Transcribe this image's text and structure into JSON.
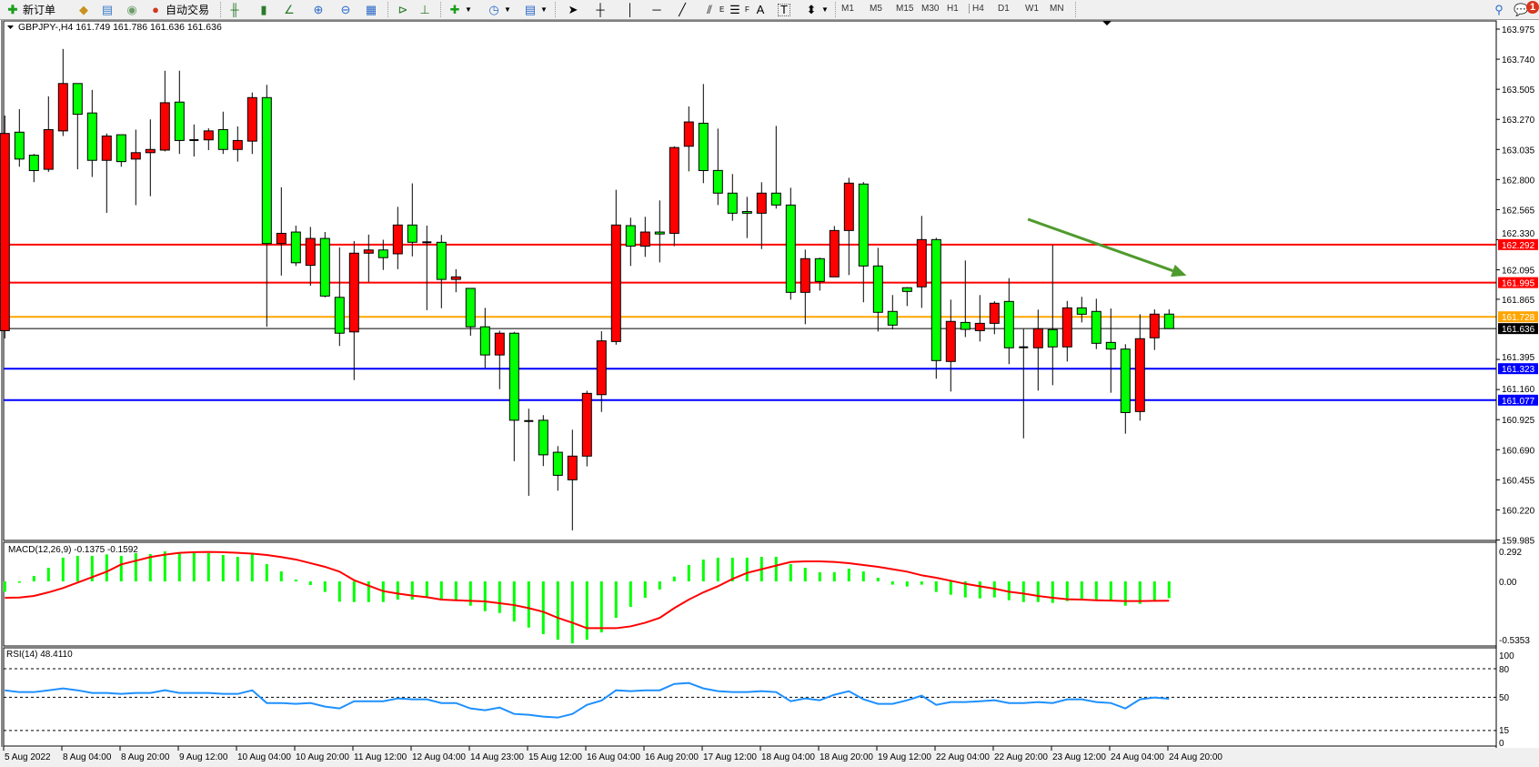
{
  "toolbar": {
    "new_order": "新订单",
    "auto_trading": "自动交易",
    "timeframes": [
      "M1",
      "M5",
      "M15",
      "M30",
      "H1",
      "H4",
      "D1",
      "W1",
      "MN"
    ],
    "active_timeframe": "H4",
    "notification_count": "1",
    "icons": [
      "new-order-icon",
      "folder-icon",
      "navigator-icon",
      "signals-icon",
      "auto-trading-icon",
      "bar-chart-icon",
      "candlestick-icon",
      "line-chart-icon",
      "zoom-in-icon",
      "zoom-out-icon",
      "tile-windows-icon",
      "auto-scroll-icon",
      "chart-shift-icon",
      "indicators-icon",
      "periods-icon",
      "templates-icon",
      "cursor-icon",
      "crosshair-icon",
      "vertical-line-icon",
      "horizontal-line-icon",
      "trendline-icon",
      "fibo-channel-icon",
      "fibo-retracement-icon",
      "text-icon",
      "text-label-icon",
      "arrows-icon",
      "search-icon",
      "notification-icon"
    ],
    "fibo_e": "E",
    "fibo_f": "F",
    "text_a": "A",
    "text_t": "T"
  },
  "chart_data": {
    "type": "candlestick",
    "symbol_header": "GBPJPY-,H4  161.749 161.786 161.636 161.636",
    "colors": {
      "up": "#ff0000",
      "down": "#00ff00",
      "outline": "#000000",
      "arrow": "#4f9a2e"
    },
    "price_ticks": [
      "163.975",
      "163.740",
      "163.505",
      "163.270",
      "163.035",
      "162.800",
      "162.565",
      "162.330",
      "162.095",
      "161.865",
      "161.395",
      "161.160",
      "160.925",
      "160.690",
      "160.455",
      "160.220",
      "159.985"
    ],
    "time_labels": [
      "5 Aug 2022",
      "8 Aug 04:00",
      "8 Aug 20:00",
      "9 Aug 12:00",
      "10 Aug 04:00",
      "10 Aug 20:00",
      "11 Aug 12:00",
      "12 Aug 04:00",
      "14 Aug 23:00",
      "15 Aug 12:00",
      "16 Aug 04:00",
      "16 Aug 20:00",
      "17 Aug 12:00",
      "18 Aug 04:00",
      "18 Aug 20:00",
      "19 Aug 12:00",
      "22 Aug 04:00",
      "22 Aug 20:00",
      "23 Aug 12:00",
      "24 Aug 04:00",
      "24 Aug 20:00"
    ],
    "ohlc": [
      [
        161.62,
        163.3,
        161.56,
        163.16
      ],
      [
        163.17,
        163.35,
        162.9,
        162.96
      ],
      [
        162.99,
        163.0,
        162.78,
        162.87
      ],
      [
        162.88,
        163.45,
        162.86,
        163.19
      ],
      [
        163.18,
        163.82,
        163.14,
        163.55
      ],
      [
        163.55,
        163.55,
        162.88,
        163.31
      ],
      [
        163.32,
        163.5,
        162.82,
        162.95
      ],
      [
        162.95,
        163.16,
        162.54,
        163.14
      ],
      [
        163.15,
        163.15,
        162.9,
        162.94
      ],
      [
        162.96,
        163.19,
        162.6,
        163.01
      ],
      [
        163.01,
        163.27,
        162.67,
        163.035
      ],
      [
        163.03,
        163.65,
        163.02,
        163.4
      ],
      [
        163.405,
        163.65,
        163.0,
        163.105
      ],
      [
        163.108,
        163.23,
        162.98,
        163.108
      ],
      [
        163.11,
        163.2,
        163.03,
        163.18
      ],
      [
        163.19,
        163.33,
        163.0,
        163.035
      ],
      [
        163.035,
        163.215,
        162.94,
        163.105
      ],
      [
        163.1,
        163.48,
        163.0,
        163.44
      ],
      [
        163.44,
        163.54,
        161.65,
        162.3
      ],
      [
        162.3,
        162.74,
        162.05,
        162.38
      ],
      [
        162.39,
        162.44,
        162.125,
        162.15
      ],
      [
        162.13,
        162.43,
        161.97,
        162.34
      ],
      [
        162.34,
        162.39,
        161.88,
        161.89
      ],
      [
        161.88,
        162.27,
        161.5,
        161.6
      ],
      [
        161.61,
        162.32,
        161.234,
        162.225
      ],
      [
        162.225,
        162.37,
        162.0,
        162.25
      ],
      [
        162.25,
        162.33,
        162.094,
        162.19
      ],
      [
        162.22,
        162.587,
        162.1,
        162.445
      ],
      [
        162.445,
        162.77,
        162.2,
        162.31
      ],
      [
        162.31,
        162.44,
        161.78,
        162.31
      ],
      [
        162.31,
        162.367,
        161.795,
        162.02
      ],
      [
        162.02,
        162.1,
        161.92,
        162.04
      ],
      [
        161.95,
        161.95,
        161.58,
        161.65
      ],
      [
        161.65,
        161.798,
        161.329,
        161.43
      ],
      [
        161.43,
        161.62,
        161.163,
        161.6
      ],
      [
        161.6,
        161.61,
        160.6,
        160.92
      ],
      [
        160.914,
        161.01,
        160.33,
        160.914
      ],
      [
        160.92,
        160.96,
        160.562,
        160.65
      ],
      [
        160.67,
        160.718,
        160.37,
        160.49
      ],
      [
        160.455,
        160.846,
        160.06,
        160.64
      ],
      [
        160.64,
        161.15,
        160.56,
        161.13
      ],
      [
        161.12,
        161.615,
        160.985,
        161.54
      ],
      [
        161.535,
        162.72,
        161.51,
        162.445
      ],
      [
        162.44,
        162.502,
        162.125,
        162.28
      ],
      [
        162.28,
        162.509,
        162.196,
        162.39
      ],
      [
        162.39,
        162.637,
        162.153,
        162.375
      ],
      [
        162.38,
        163.06,
        162.28,
        163.05
      ],
      [
        163.06,
        163.371,
        162.864,
        163.25
      ],
      [
        163.24,
        163.546,
        162.772,
        162.87
      ],
      [
        162.871,
        163.198,
        162.601,
        162.694
      ],
      [
        162.694,
        162.843,
        162.478,
        162.537
      ],
      [
        162.55,
        162.665,
        162.343,
        162.537
      ],
      [
        162.537,
        162.779,
        162.257,
        162.694
      ],
      [
        162.694,
        163.219,
        162.573,
        162.601
      ],
      [
        162.601,
        162.736,
        161.862,
        161.919
      ],
      [
        161.919,
        162.253,
        161.67,
        162.182
      ],
      [
        162.182,
        162.19,
        161.933,
        162.004
      ],
      [
        162.04,
        162.437,
        162.04,
        162.402
      ],
      [
        162.402,
        162.814,
        162.054,
        162.772
      ],
      [
        162.765,
        162.78,
        161.841,
        162.125
      ],
      [
        162.125,
        162.267,
        161.613,
        161.763
      ],
      [
        161.77,
        161.898,
        161.63,
        161.663
      ],
      [
        161.955,
        161.96,
        161.812,
        161.926
      ],
      [
        161.962,
        162.516,
        161.798,
        162.331
      ],
      [
        162.331,
        162.345,
        161.244,
        161.386
      ],
      [
        161.379,
        161.862,
        161.144,
        161.692
      ],
      [
        161.684,
        162.168,
        161.57,
        161.63
      ],
      [
        161.62,
        161.898,
        161.535,
        161.677
      ],
      [
        161.677,
        161.85,
        161.592,
        161.834
      ],
      [
        161.848,
        162.03,
        161.358,
        161.486
      ],
      [
        161.49,
        161.632,
        160.779,
        161.49
      ],
      [
        161.486,
        161.784,
        161.152,
        161.635
      ],
      [
        161.628,
        162.289,
        161.194,
        161.493
      ],
      [
        161.493,
        161.852,
        161.379,
        161.798
      ],
      [
        161.798,
        161.884,
        161.684,
        161.748
      ],
      [
        161.77,
        161.869,
        161.476,
        161.521
      ],
      [
        161.528,
        161.793,
        161.135,
        161.476
      ],
      [
        161.476,
        161.514,
        160.815,
        160.98
      ],
      [
        160.988,
        161.748,
        160.917,
        161.557
      ],
      [
        161.564,
        161.786,
        161.469,
        161.749
      ],
      [
        161.749,
        161.786,
        161.636,
        161.636
      ]
    ],
    "hlines": [
      {
        "price": 162.292,
        "label": "162.292",
        "color": "#ff0000"
      },
      {
        "price": 161.995,
        "label": "161.995",
        "color": "#ff0000"
      },
      {
        "price": 161.728,
        "label": "161.728",
        "color": "#ffa500"
      },
      {
        "price": 161.636,
        "label": "161.636",
        "color": "#000000"
      },
      {
        "price": 161.323,
        "label": "161.323",
        "color": "#0000ff"
      },
      {
        "price": 161.077,
        "label": "161.077",
        "color": "#0000ff"
      }
    ],
    "arrow": {
      "from": {
        "bar": 70.3,
        "price": 162.49
      },
      "to": {
        "bar": 81.2,
        "price": 162.05
      }
    },
    "macd": {
      "label": "MACD(12,26,9) -0.1375 -0.1592",
      "ticks": [
        "0.292",
        "0.00",
        "-0.5353"
      ],
      "histogram": [
        -0.085,
        -0.01,
        0.045,
        0.112,
        0.195,
        0.21,
        0.21,
        0.222,
        0.21,
        0.232,
        0.225,
        0.247,
        0.232,
        0.232,
        0.232,
        0.217,
        0.202,
        0.225,
        0.142,
        0.082,
        0.015,
        -0.03,
        -0.087,
        -0.167,
        -0.17,
        -0.17,
        -0.17,
        -0.15,
        -0.15,
        -0.135,
        -0.155,
        -0.155,
        -0.2,
        -0.245,
        -0.26,
        -0.33,
        -0.38,
        -0.434,
        -0.48,
        -0.51,
        -0.48,
        -0.42,
        -0.3,
        -0.21,
        -0.135,
        -0.067,
        0.04,
        0.135,
        0.18,
        0.195,
        0.195,
        0.195,
        0.202,
        0.202,
        0.142,
        0.112,
        0.075,
        0.075,
        0.105,
        0.082,
        0.03,
        -0.027,
        -0.042,
        -0.027,
        -0.087,
        -0.11,
        -0.132,
        -0.14,
        -0.132,
        -0.155,
        -0.17,
        -0.17,
        -0.177,
        -0.162,
        -0.147,
        -0.147,
        -0.155,
        -0.2,
        -0.185,
        -0.155,
        -0.1375
      ],
      "signal": [
        -0.135,
        -0.133,
        -0.12,
        -0.09,
        -0.055,
        -0.01,
        0.035,
        0.08,
        0.14,
        0.17,
        0.2,
        0.22,
        0.235,
        0.24,
        0.242,
        0.24,
        0.235,
        0.228,
        0.217,
        0.2,
        0.18,
        0.15,
        0.12,
        0.08,
        0.01,
        -0.035,
        -0.08,
        -0.1,
        -0.117,
        -0.13,
        -0.15,
        -0.155,
        -0.16,
        -0.165,
        -0.18,
        -0.195,
        -0.22,
        -0.25,
        -0.3,
        -0.34,
        -0.385,
        -0.385,
        -0.385,
        -0.37,
        -0.34,
        -0.3,
        -0.22,
        -0.15,
        -0.09,
        -0.04,
        0.02,
        0.07,
        0.1,
        0.13,
        0.16,
        0.165,
        0.165,
        0.16,
        0.15,
        0.135,
        0.12,
        0.1,
        0.08,
        0.05,
        0.03,
        0.005,
        -0.02,
        -0.04,
        -0.06,
        -0.085,
        -0.1,
        -0.12,
        -0.135,
        -0.147,
        -0.15,
        -0.155,
        -0.158,
        -0.162,
        -0.162,
        -0.16,
        -0.1592
      ],
      "colors": {
        "histogram": "#00ff00",
        "signal": "#ff0000"
      }
    },
    "rsi": {
      "label": "RSI(14) 48.4110",
      "ticks": [
        "100",
        "80",
        "50",
        "15",
        "0"
      ],
      "levels": [
        80,
        50,
        15
      ],
      "values": [
        57.3,
        55.4,
        55.4,
        57.3,
        59.3,
        57.3,
        54.5,
        54.5,
        53.5,
        54.5,
        54.5,
        57.3,
        54.5,
        54.5,
        54.5,
        53.5,
        53.5,
        57.3,
        43.9,
        43.9,
        43,
        43.9,
        40.1,
        38.2,
        45.8,
        45.8,
        45.8,
        48.7,
        47.8,
        47.8,
        43.9,
        43.9,
        38.2,
        36.3,
        39.1,
        32.4,
        31.5,
        29.6,
        28.6,
        32.4,
        42,
        46.5,
        57.3,
        56.4,
        57.3,
        57.3,
        64,
        65,
        59.3,
        56.4,
        55.4,
        55.4,
        56.4,
        55.4,
        45.8,
        48.7,
        46.8,
        52.6,
        56.4,
        47.8,
        43,
        43,
        46.8,
        51.6,
        42,
        44.9,
        44.9,
        45.8,
        46.8,
        43.9,
        43.9,
        44.9,
        43.9,
        47.8,
        47.8,
        44.9,
        43.9,
        38.2,
        47.8,
        49.7,
        48.411
      ],
      "color": "#1e90ff"
    }
  }
}
